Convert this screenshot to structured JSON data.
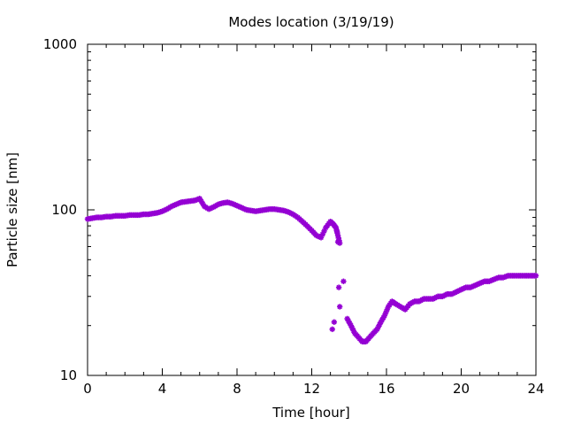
{
  "chart_data": {
    "type": "scatter",
    "title": "Modes location (3/19/19)",
    "xlabel": "Time [hour]",
    "ylabel": "Particle size [nm]",
    "xlim": [
      0,
      24
    ],
    "ylim": [
      10,
      1000
    ],
    "yscale": "log",
    "x_ticks": [
      0,
      4,
      8,
      12,
      16,
      20,
      24
    ],
    "x_tick_labels": [
      "0",
      "4",
      "8",
      "12",
      "16",
      "20",
      "24"
    ],
    "y_ticks": [
      10,
      100,
      1000
    ],
    "y_tick_labels": [
      "10",
      "100",
      "1000"
    ],
    "grid": false,
    "marker_color": "#9400D3",
    "series": [
      {
        "x": [
          0.0,
          0.25,
          0.5,
          0.75,
          1.0,
          1.25,
          1.5,
          1.75,
          2.0,
          2.25,
          2.5,
          2.75,
          3.0,
          3.25,
          3.5,
          3.75,
          4.0,
          4.25,
          4.5,
          4.75,
          5.0,
          5.25,
          5.5,
          5.75,
          6.0,
          6.25,
          6.5,
          6.75,
          7.0,
          7.25,
          7.5,
          7.75,
          8.0,
          8.25,
          8.5,
          8.75,
          9.0,
          9.25,
          9.5,
          9.75,
          10.0,
          10.25,
          10.5,
          10.75,
          11.0,
          11.25,
          11.5,
          11.75,
          12.0,
          12.25,
          12.5,
          12.75,
          13.0,
          13.15,
          13.3,
          13.4,
          13.5,
          13.7,
          13.9,
          14.1,
          14.3,
          14.5,
          14.7,
          14.9,
          15.1,
          15.3,
          15.5,
          15.7,
          15.9,
          16.1,
          16.3,
          16.5,
          16.75,
          17.0,
          17.25,
          17.5,
          17.75,
          18.0,
          18.25,
          18.5,
          18.75,
          19.0,
          19.25,
          19.5,
          19.75,
          20.0,
          20.25,
          20.5,
          20.75,
          21.0,
          21.25,
          21.5,
          21.75,
          22.0,
          22.25,
          22.5,
          22.75,
          23.0,
          23.25,
          23.5,
          23.75,
          24.0
        ],
        "y": [
          88,
          89,
          90,
          90,
          91,
          91,
          92,
          92,
          92,
          93,
          93,
          93,
          94,
          94,
          95,
          96,
          98,
          101,
          105,
          108,
          111,
          112,
          113,
          114,
          117,
          105,
          101,
          104,
          108,
          110,
          111,
          109,
          106,
          103,
          100,
          99,
          98,
          99,
          100,
          101,
          101,
          100,
          99,
          97,
          94,
          90,
          85,
          80,
          75,
          70,
          68,
          78,
          85,
          82,
          78,
          70,
          63,
          37,
          22,
          20,
          18,
          17,
          16,
          16,
          17,
          18,
          19,
          21,
          23,
          26,
          28,
          27,
          26,
          25,
          27,
          28,
          28,
          29,
          29,
          29,
          30,
          30,
          31,
          31,
          32,
          33,
          34,
          34,
          35,
          36,
          37,
          37,
          38,
          39,
          39,
          40,
          40,
          40,
          40,
          40,
          40,
          40
        ],
        "extra_points": [
          {
            "x": 13.45,
            "y": 34
          },
          {
            "x": 13.5,
            "y": 26
          },
          {
            "x": 13.2,
            "y": 21
          },
          {
            "x": 13.1,
            "y": 19
          },
          {
            "x": 13.35,
            "y": 74
          },
          {
            "x": 13.4,
            "y": 64
          }
        ]
      }
    ]
  }
}
